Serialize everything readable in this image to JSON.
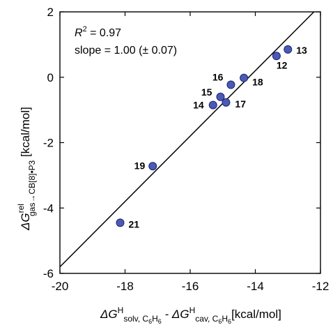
{
  "chart_data": {
    "type": "scatter",
    "xlim": [
      -20,
      -12
    ],
    "ylim": [
      -6,
      2
    ],
    "x_ticks": [
      -20,
      -18,
      -16,
      -14,
      -12
    ],
    "y_ticks": [
      -6,
      -4,
      -2,
      0,
      2
    ],
    "x_tick_labels": [
      "-20",
      "-18",
      "-16",
      "-14",
      "-12"
    ],
    "y_tick_labels": [
      "-6",
      "-4",
      "-2",
      "0",
      "2"
    ],
    "xlabel": {
      "main": "ΔG",
      "sup1": "H",
      "sub1": "solv, C",
      "sub1_idx": "6",
      "sub1_h": "H",
      "sub1_idx2": "6",
      "minus": " - ΔG",
      "sup2": "H",
      "sub2": "cav, C",
      "sub2_idx": "6",
      "sub2_h": "H",
      "sub2_idx2": "6",
      "unit": "[kcal/mol]"
    },
    "ylabel": {
      "main": "ΔG",
      "sup": "rel",
      "sub": "gas→CB[8]•P3",
      "unit": " [kcal/mol]"
    },
    "annotation": {
      "r2_symbol": "R",
      "r2_sup": "2",
      "r2_value": " = 0.97",
      "slope_text": "slope = 1.00 (± 0.07)"
    },
    "fit_line": {
      "slope": 1.0,
      "intercept": 14.2,
      "x_range": [
        -20,
        -12
      ]
    },
    "points": [
      {
        "label": "12",
        "x": -13.35,
        "y": 0.65
      },
      {
        "label": "13",
        "x": -13.0,
        "y": 0.85
      },
      {
        "label": "14",
        "x": -15.3,
        "y": -0.85
      },
      {
        "label": "15",
        "x": -15.07,
        "y": -0.6
      },
      {
        "label": "16",
        "x": -14.75,
        "y": -0.23
      },
      {
        "label": "17",
        "x": -14.9,
        "y": -0.77
      },
      {
        "label": "18",
        "x": -14.35,
        "y": -0.02
      },
      {
        "label": "19",
        "x": -17.15,
        "y": -2.72
      },
      {
        "label": "21",
        "x": -18.15,
        "y": -4.45
      }
    ],
    "colors": {
      "point_fill": "#4a5ab5",
      "point_stroke": "#1c2470",
      "line": "#000000"
    }
  }
}
